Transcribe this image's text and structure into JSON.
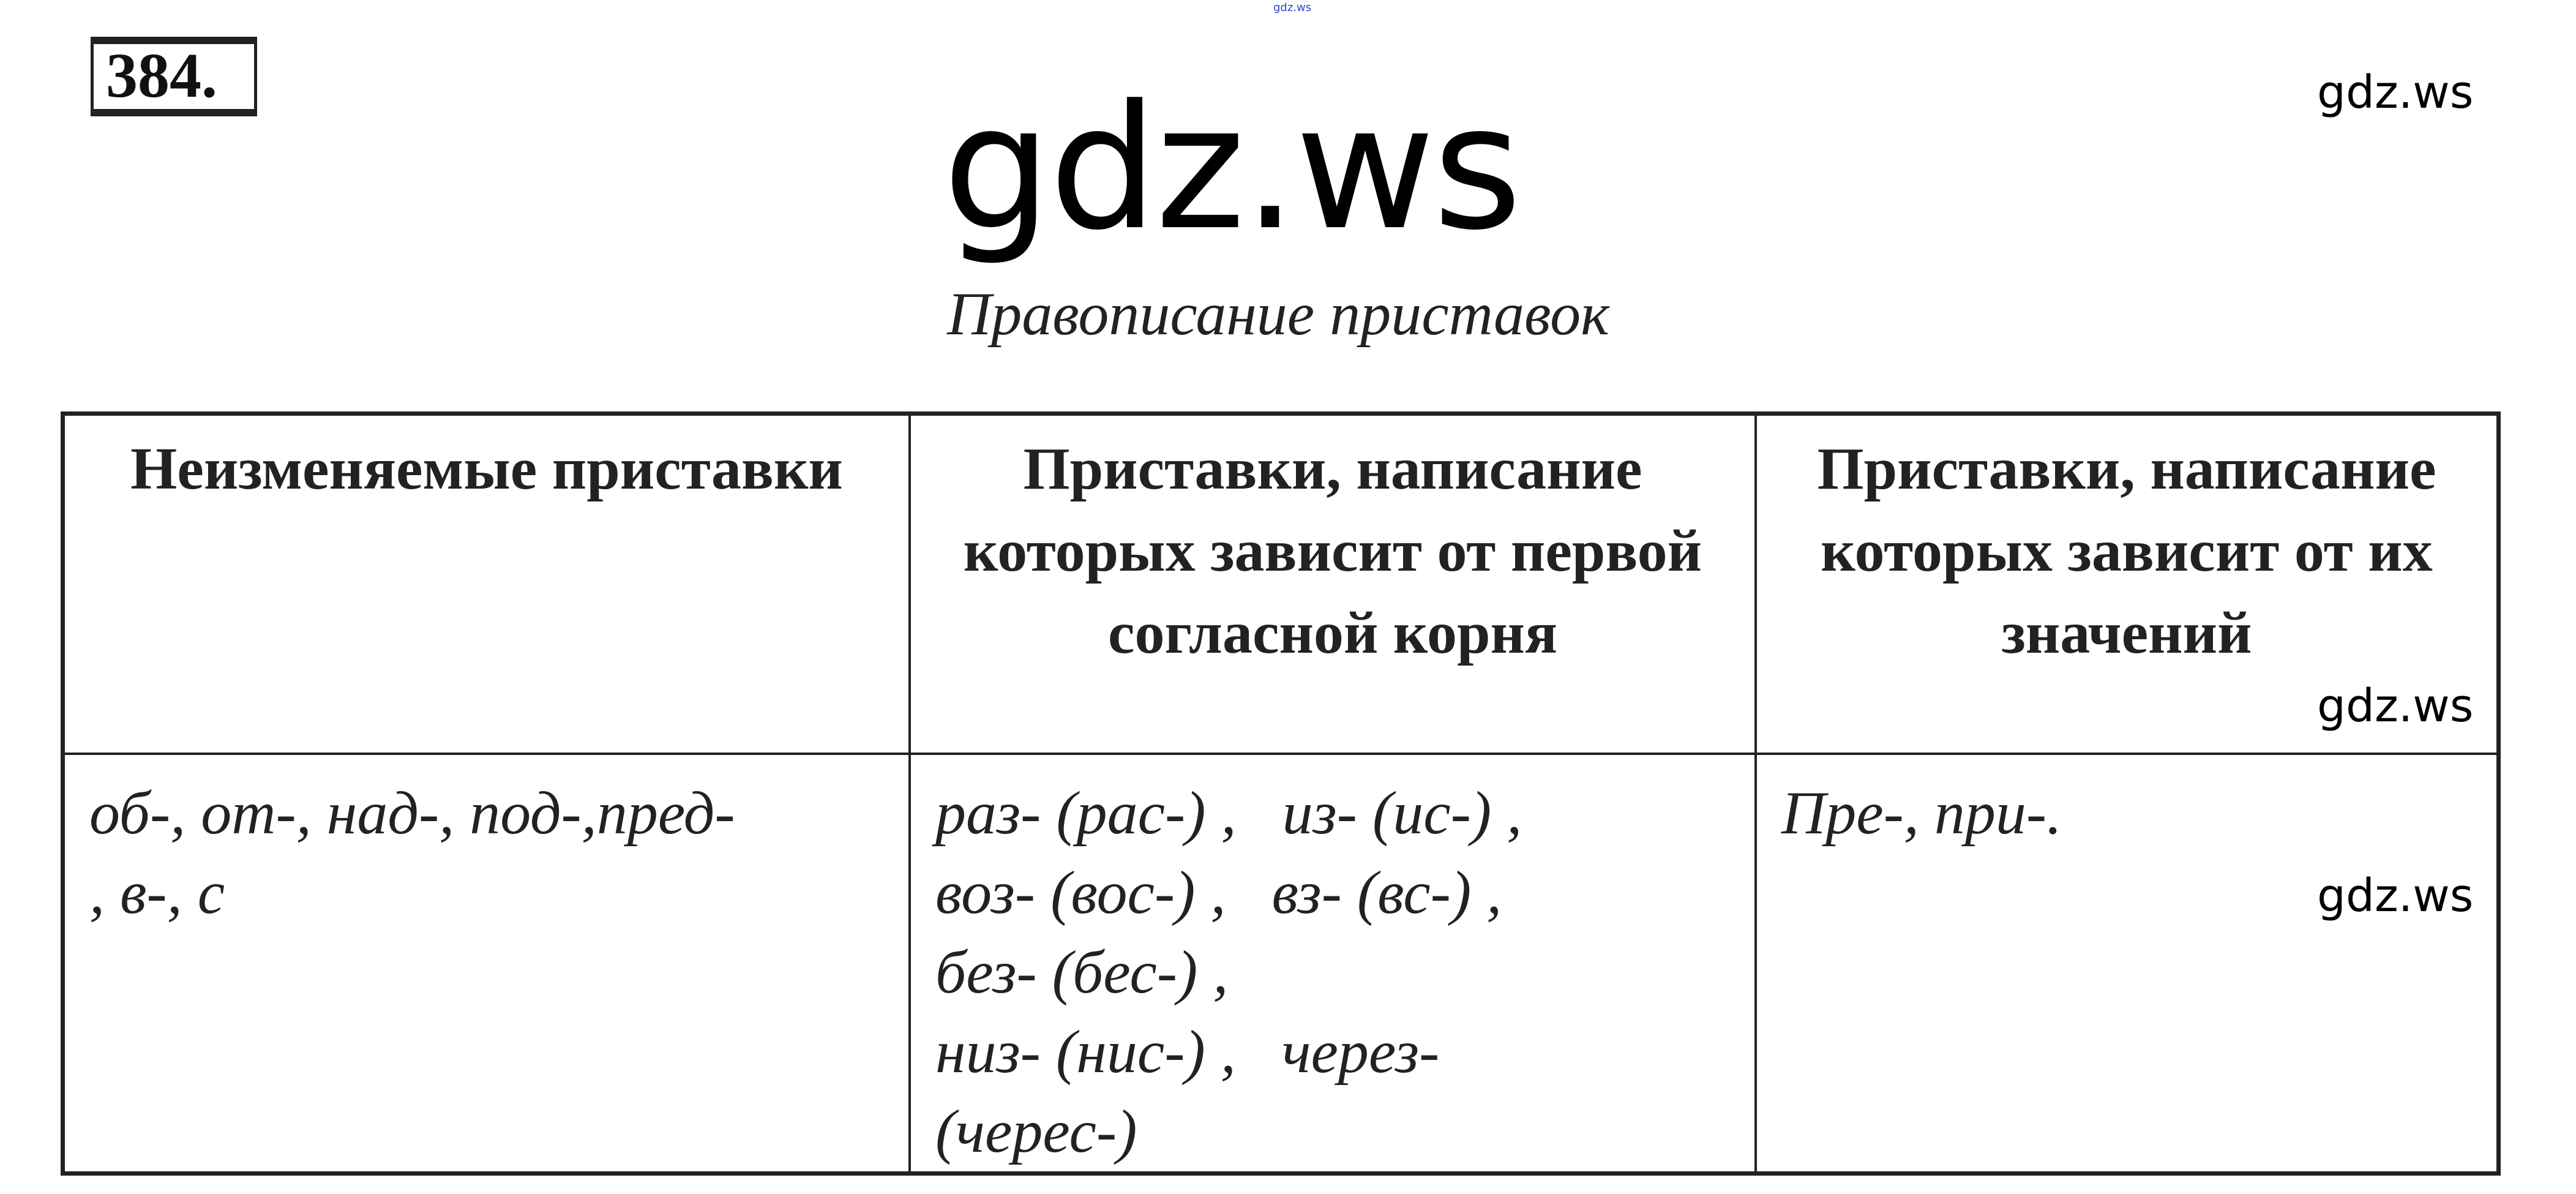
{
  "top_mark": "gdz.ws",
  "exercise_number": "384.",
  "watermark_large": "gdz.ws",
  "watermarks": [
    "gdz.ws",
    "gdz.ws",
    "gdz.ws"
  ],
  "subtitle": "Правописание приставок",
  "table": {
    "headers": [
      "Неизменяемые приставки",
      "Приставки, написание которых зависит от первой согласной корня",
      "Приставки, написание которых зависит от их значений"
    ],
    "cells": [
      [
        "об-, от-, над-, под-,пред-",
        ", в-, с"
      ],
      [
        "раз- (рас-) ,   из- (ис-) ,",
        "воз- (вос-) ,   вз- (вс-) ,",
        "без- (бес-) ,",
        "низ- (нис-) ,   через-",
        "(черес-)"
      ],
      [
        "Пре-, при-."
      ]
    ]
  }
}
